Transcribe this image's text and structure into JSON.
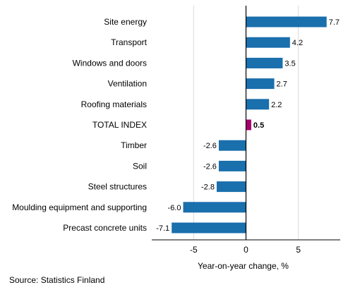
{
  "chart_data": {
    "type": "bar",
    "orientation": "horizontal",
    "categories": [
      "Site energy",
      "Transport",
      "Windows and doors",
      "Ventilation",
      "Roofing materials",
      "TOTAL INDEX",
      "Timber",
      "Soil",
      "Steel structures",
      "Moulding equipment and supporting",
      "Precast concrete units"
    ],
    "values": [
      7.7,
      4.2,
      3.5,
      2.7,
      2.2,
      0.5,
      -2.6,
      -2.6,
      -2.8,
      -6.0,
      -7.1
    ],
    "value_labels": [
      "7.7",
      "4.2",
      "3.5",
      "2.7",
      "2.2",
      "0.5",
      "-2.6",
      "-2.6",
      "-2.8",
      "-6.0",
      "-7.1"
    ],
    "highlight_category": "TOTAL INDEX",
    "xlabel": "Year-on-year change, %",
    "xlim": [
      -9,
      9
    ],
    "xticks": [
      -5,
      0,
      5
    ],
    "xtick_labels": [
      "-5",
      "0",
      "5"
    ],
    "grid": "vertical",
    "colors": {
      "bar": "#1a6fad",
      "highlight": "#a6006e",
      "grid": "#d9d9d9",
      "axis": "#000000"
    }
  },
  "source": "Source: Statistics Finland"
}
